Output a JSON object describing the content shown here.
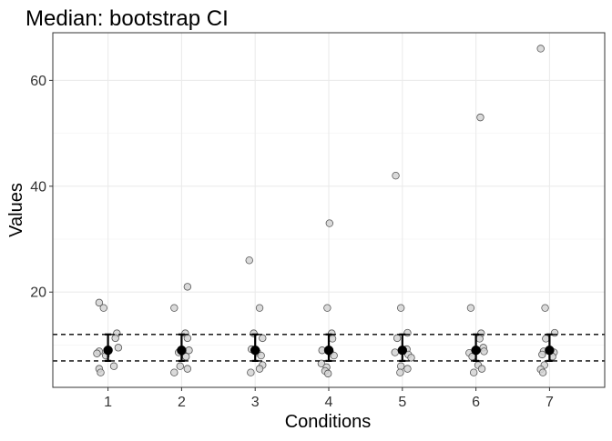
{
  "chart_data": {
    "type": "scatter",
    "title": "Median: bootstrap CI",
    "xlabel": "Conditions",
    "ylabel": "Values",
    "categories": [
      "1",
      "2",
      "3",
      "4",
      "5",
      "6",
      "7"
    ],
    "y_ticks": [
      20,
      40,
      60
    ],
    "ylim": [
      2,
      69
    ],
    "grid": true,
    "theme": {
      "point_fill": "#d3d3d3",
      "point_stroke": "#555555",
      "summary_color": "#000000",
      "grid_major": "#ebebeb",
      "grid_minor": "#f5f5f5",
      "panel_border": "#333333"
    },
    "reference_lines": [
      {
        "y": 12,
        "style": "dashed"
      },
      {
        "y": 7,
        "style": "dashed"
      }
    ],
    "groups": [
      {
        "condition": "1",
        "median": 9,
        "ci": [
          7,
          12
        ],
        "points": [
          [
            -0.12,
            18
          ],
          [
            -0.06,
            17
          ],
          [
            0.12,
            12.2
          ],
          [
            0.1,
            11.3
          ],
          [
            0.14,
            9.5
          ],
          [
            -0.12,
            8.8
          ],
          [
            -0.15,
            8.4
          ],
          [
            -0.03,
            8.0
          ],
          [
            0.08,
            6.0
          ],
          [
            -0.12,
            5.5
          ],
          [
            -0.1,
            4.8
          ]
        ]
      },
      {
        "condition": "2",
        "median": 9,
        "ci": [
          7,
          12
        ],
        "points": [
          [
            0.08,
            21
          ],
          [
            -0.1,
            17
          ],
          [
            0.05,
            12.2
          ],
          [
            0.08,
            11.3
          ],
          [
            0.1,
            9.0
          ],
          [
            -0.04,
            8.6
          ],
          [
            0.06,
            7.8
          ],
          [
            -0.02,
            6.0
          ],
          [
            0.08,
            5.5
          ],
          [
            -0.1,
            4.8
          ]
        ]
      },
      {
        "condition": "3",
        "median": 9,
        "ci": [
          7,
          12
        ],
        "points": [
          [
            -0.08,
            26
          ],
          [
            0.06,
            17
          ],
          [
            -0.02,
            12.2
          ],
          [
            0.1,
            11.3
          ],
          [
            -0.05,
            9.2
          ],
          [
            0.03,
            8.6
          ],
          [
            0.08,
            8.0
          ],
          [
            0.1,
            6.2
          ],
          [
            0.06,
            5.5
          ],
          [
            -0.06,
            4.8
          ]
        ]
      },
      {
        "condition": "4",
        "median": 9,
        "ci": [
          7,
          12
        ],
        "points": [
          [
            0.01,
            33
          ],
          [
            -0.02,
            17
          ],
          [
            0.04,
            12.2
          ],
          [
            0.05,
            11.2
          ],
          [
            -0.09,
            9.0
          ],
          [
            0.02,
            8.6
          ],
          [
            0.07,
            8.0
          ],
          [
            -0.1,
            6.5
          ],
          [
            -0.03,
            5.8
          ],
          [
            -0.05,
            5.1
          ],
          [
            -0.01,
            4.6
          ]
        ]
      },
      {
        "condition": "5",
        "median": 9,
        "ci": [
          7,
          12
        ],
        "points": [
          [
            -0.09,
            42
          ],
          [
            -0.02,
            17
          ],
          [
            0.07,
            12.3
          ],
          [
            -0.07,
            11.3
          ],
          [
            0.06,
            9.2
          ],
          [
            -0.1,
            8.6
          ],
          [
            0.08,
            8.2
          ],
          [
            0.12,
            7.6
          ],
          [
            -0.02,
            6.0
          ],
          [
            0.07,
            5.5
          ],
          [
            -0.03,
            4.8
          ]
        ]
      },
      {
        "condition": "6",
        "median": 9,
        "ci": [
          7,
          12
        ],
        "points": [
          [
            0.06,
            53
          ],
          [
            -0.07,
            17
          ],
          [
            0.07,
            12.2
          ],
          [
            0.05,
            11.2
          ],
          [
            0.1,
            9.5
          ],
          [
            0.11,
            8.8
          ],
          [
            -0.09,
            8.5
          ],
          [
            -0.05,
            7.8
          ],
          [
            0.03,
            6.2
          ],
          [
            0.08,
            5.5
          ],
          [
            -0.03,
            4.8
          ]
        ]
      },
      {
        "condition": "7",
        "median": 9,
        "ci": [
          7,
          12
        ],
        "points": [
          [
            -0.12,
            66
          ],
          [
            -0.06,
            17
          ],
          [
            0.07,
            12.3
          ],
          [
            -0.05,
            11.2
          ],
          [
            -0.08,
            8.8
          ],
          [
            0.06,
            8.6
          ],
          [
            -0.1,
            8.2
          ],
          [
            0.04,
            7.8
          ],
          [
            -0.07,
            6.2
          ],
          [
            -0.12,
            5.4
          ],
          [
            -0.09,
            4.8
          ]
        ]
      }
    ]
  }
}
